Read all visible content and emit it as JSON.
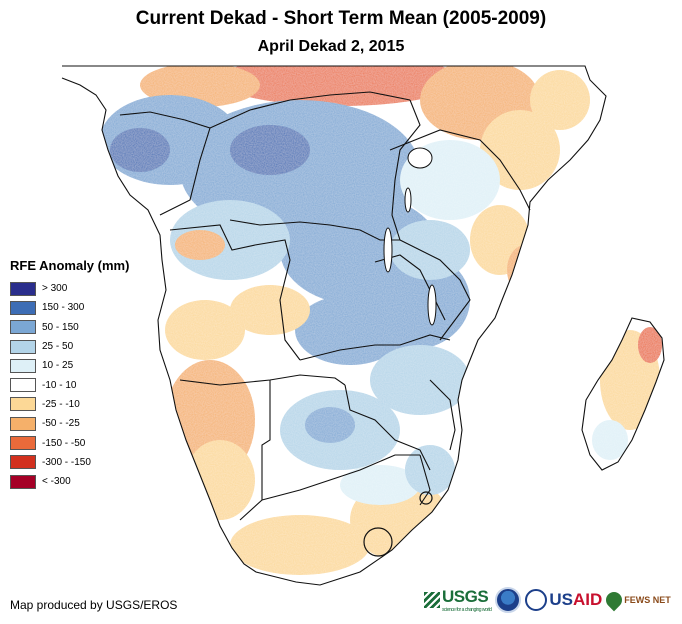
{
  "title": "Current Dekad - Short Term Mean (2005-2009)",
  "subtitle": "April Dekad 2, 2015",
  "legend": {
    "title": "RFE Anomaly (mm)",
    "items": [
      {
        "label": "> 300",
        "color": "#2a2e8c"
      },
      {
        "label": "150 - 300",
        "color": "#3d6db5"
      },
      {
        "label": "50 - 150",
        "color": "#7ba7d4"
      },
      {
        "label": "25 - 50",
        "color": "#b3d4e8"
      },
      {
        "label": "10 - 25",
        "color": "#def0f7"
      },
      {
        "label": "-10 - 10",
        "color": "#ffffff"
      },
      {
        "label": "-25 - -10",
        "color": "#fcd896"
      },
      {
        "label": "-50 - -25",
        "color": "#f5b06a"
      },
      {
        "label": "-150 - -50",
        "color": "#ea6a3a"
      },
      {
        "label": "-300 - -150",
        "color": "#d2301e"
      },
      {
        "label": "< -300",
        "color": "#a50026"
      }
    ]
  },
  "credit": "Map produced by USGS/EROS",
  "logos": {
    "usgs": "USGS",
    "usgs_tagline": "science for a changing world",
    "usaid_us": "US",
    "usaid_aid": "AID",
    "fews": "FEWS NET"
  }
}
